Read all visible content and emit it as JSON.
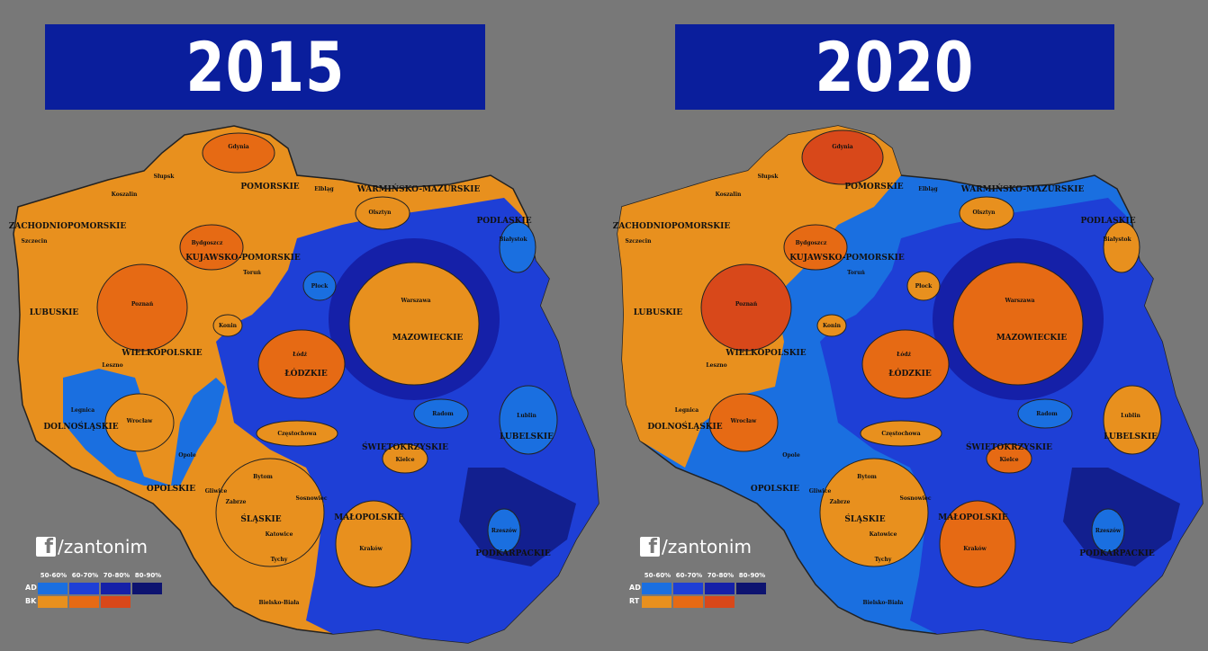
{
  "panels": [
    {
      "year": "2015",
      "credit": "/zantonim",
      "legend": {
        "ranges": [
          "50-60%",
          "60-70%",
          "70-80%",
          "80-90%"
        ],
        "rows": [
          {
            "label": "AD",
            "colors": [
              "#1a6fe0",
              "#1e3fd6",
              "#1520a8",
              "#0d1370"
            ]
          },
          {
            "label": "BK",
            "colors": [
              "#e8901e",
              "#e66a14",
              "#d8481a"
            ]
          }
        ]
      },
      "regions": {
        "voivodeships": [
          "ZACHODNIOPOMORSKIE",
          "POMORSKIE",
          "WARMIŃSKO-MAZURSKIE",
          "PODLASKIE",
          "KUJAWSKO-POMORSKIE",
          "LUBUSKIE",
          "WIELKOPOLSKIE",
          "MAZOWIECKIE",
          "ŁÓDZKIE",
          "DOLNOŚLĄSKIE",
          "OPOLSKIE",
          "ŚLĄSKIE",
          "ŚWIĘTOKRZYSKIE",
          "LUBELSKIE",
          "MAŁOPOLSKIE",
          "PODKARPACKIE"
        ],
        "cities": [
          "Gdynia",
          "Słupsk",
          "Koszalin",
          "Elbląg",
          "Olsztyn",
          "Szczecin",
          "Bydgoszcz",
          "Toruń",
          "Poznań",
          "Leszno",
          "Konin",
          "Płock",
          "Warszawa",
          "Łódź",
          "Wrocław",
          "Legnica",
          "Opole",
          "Częstochowa",
          "Kielce",
          "Radom",
          "Lublin",
          "Bytom",
          "Zabrze",
          "Gliwice",
          "Sosnowiec",
          "Katowice",
          "Tychy",
          "Kraków",
          "Rzeszów",
          "Bielsko-Biała",
          "Białystok"
        ]
      }
    },
    {
      "year": "2020",
      "credit": "/zantonim",
      "legend": {
        "ranges": [
          "50-60%",
          "60-70%",
          "70-80%",
          "80-90%"
        ],
        "rows": [
          {
            "label": "AD",
            "colors": [
              "#1a6fe0",
              "#1e3fd6",
              "#1520a8",
              "#0d1370"
            ]
          },
          {
            "label": "RT",
            "colors": [
              "#e8901e",
              "#e66a14",
              "#d8481a"
            ]
          }
        ]
      },
      "regions": {
        "voivodeships": [
          "ZACHODNIOPOMORSKIE",
          "POMORSKIE",
          "WARMIŃSKO-MAZURSKIE",
          "PODLASKIE",
          "KUJAWSKO-POMORSKIE",
          "LUBUSKIE",
          "WIELKOPOLSKIE",
          "MAZOWIECKIE",
          "ŁÓDZKIE",
          "DOLNOŚLĄSKIE",
          "OPOLSKIE",
          "ŚLĄSKIE",
          "ŚWIĘTOKRZYSKIE",
          "LUBELSKIE",
          "MAŁOPOLSKIE",
          "PODKARPACKIE"
        ],
        "cities": [
          "Gdynia",
          "Słupsk",
          "Koszalin",
          "Elbląg",
          "Olsztyn",
          "Szczecin",
          "Bydgoszcz",
          "Toruń",
          "Poznań",
          "Leszno",
          "Konin",
          "Płock",
          "Warszawa",
          "Łódź",
          "Wrocław",
          "Legnica",
          "Opole",
          "Częstochowa",
          "Kielce",
          "Radom",
          "Lublin",
          "Bytom",
          "Zabrze",
          "Gliwice",
          "Sosnowiec",
          "Katowice",
          "Tychy",
          "Kraków",
          "Rzeszów",
          "Bielsko-Biała",
          "Białystok"
        ]
      }
    }
  ]
}
